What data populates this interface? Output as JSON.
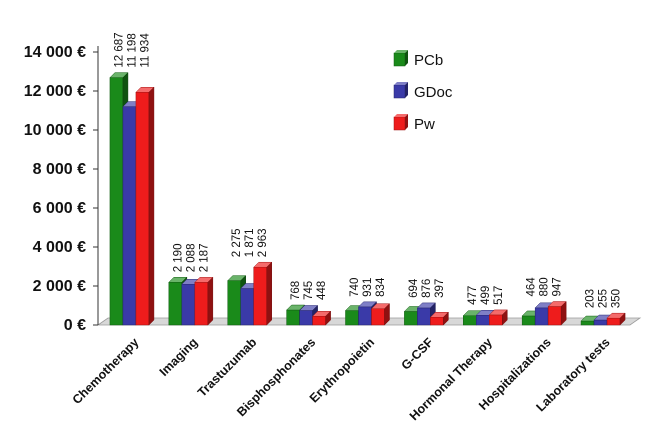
{
  "chart_data": {
    "type": "bar",
    "categories": [
      "Chemotherapy",
      "Imaging",
      "Trastuzumab",
      "Bisphosphonates",
      "Erythropoietin",
      "G-CSF",
      "Hormonal Therapy",
      "Hospitalizations",
      "Laboratory tests"
    ],
    "series": [
      {
        "name": "PCb",
        "color": "#1a8a1a",
        "values": [
          12687,
          2190,
          2275,
          768,
          740,
          694,
          477,
          464,
          203
        ]
      },
      {
        "name": "GDoc",
        "color": "#3a3aa8",
        "values": [
          11198,
          2088,
          1871,
          745,
          931,
          876,
          499,
          880,
          255
        ]
      },
      {
        "name": "Pw",
        "color": "#ee1c1c",
        "values": [
          11934,
          2187,
          2963,
          448,
          834,
          397,
          517,
          947,
          350
        ]
      }
    ],
    "data_labels": [
      [
        "12 687",
        "11 198",
        "11 934"
      ],
      [
        "2 190",
        "2 088",
        "2 187"
      ],
      [
        "2 275",
        "1 871",
        "2 963"
      ],
      [
        "768",
        "745",
        "448"
      ],
      [
        "740",
        "931",
        "834"
      ],
      [
        "694",
        "876",
        "397"
      ],
      [
        "477",
        "499",
        "517"
      ],
      [
        "464",
        "880",
        "947"
      ],
      [
        "203",
        "255",
        "350"
      ]
    ],
    "y_ticks": [
      0,
      2000,
      4000,
      6000,
      8000,
      10000,
      12000,
      14000
    ],
    "y_tick_labels": [
      "0 €",
      "2 000 €",
      "4 000 €",
      "6 000 €",
      "8 000 €",
      "10 000 €",
      "12 000 €",
      "14 000 €"
    ],
    "ylim": [
      0,
      14000
    ],
    "grid": false,
    "legend_position": "top-right",
    "title": "",
    "xlabel": "",
    "ylabel": ""
  }
}
